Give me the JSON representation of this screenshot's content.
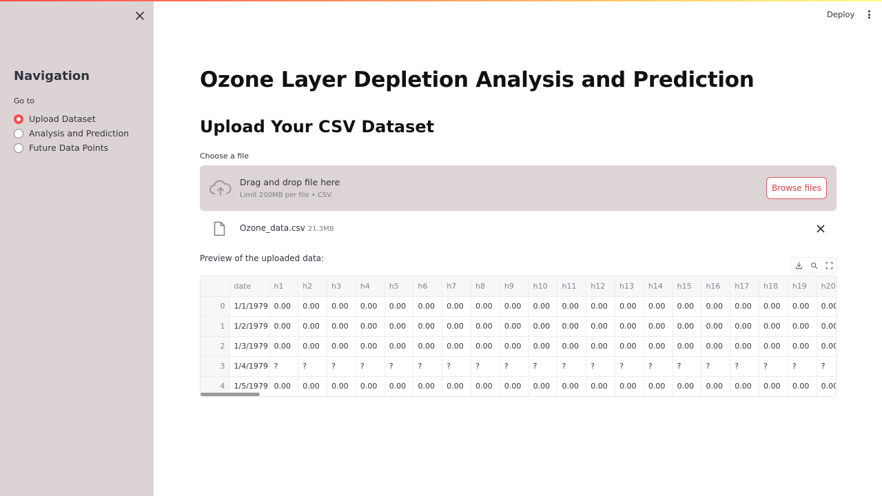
{
  "header": {
    "deploy_label": "Deploy"
  },
  "sidebar": {
    "title": "Navigation",
    "goto_label": "Go to",
    "items": [
      {
        "label": "Upload Dataset",
        "selected": true
      },
      {
        "label": "Analysis and Prediction",
        "selected": false
      },
      {
        "label": "Future Data Points",
        "selected": false
      }
    ]
  },
  "main": {
    "title": "Ozone Layer Depletion Analysis and Prediction",
    "subtitle": "Upload Your CSV Dataset",
    "uploader": {
      "label": "Choose a file",
      "drop_text": "Drag and drop file here",
      "limit_text": "Limit 200MB per file • CSV",
      "browse_label": "Browse files"
    },
    "file": {
      "name": "Ozone_data.csv",
      "size": "21.3MB"
    },
    "preview_label": "Preview of the uploaded data:",
    "table": {
      "columns": [
        "",
        "date",
        "h1",
        "h2",
        "h3",
        "h4",
        "h5",
        "h6",
        "h7",
        "h8",
        "h9",
        "h10",
        "h11",
        "h12",
        "h13",
        "h14",
        "h15",
        "h16",
        "h17",
        "h18",
        "h19",
        "h20"
      ],
      "rows": [
        [
          "0",
          "1/1/1979",
          "0.00",
          "0.00",
          "0.00",
          "0.00",
          "0.00",
          "0.00",
          "0.00",
          "0.00",
          "0.00",
          "0.00",
          "0.00",
          "0.00",
          "0.00",
          "0.00",
          "0.00",
          "0.00",
          "0.00",
          "0.00",
          "0.00",
          "0.00"
        ],
        [
          "1",
          "1/2/1979",
          "0.00",
          "0.00",
          "0.00",
          "0.00",
          "0.00",
          "0.00",
          "0.00",
          "0.00",
          "0.00",
          "0.00",
          "0.00",
          "0.00",
          "0.00",
          "0.00",
          "0.00",
          "0.00",
          "0.00",
          "0.00",
          "0.00",
          "0.00"
        ],
        [
          "2",
          "1/3/1979",
          "0.00",
          "0.00",
          "0.00",
          "0.00",
          "0.00",
          "0.00",
          "0.00",
          "0.00",
          "0.00",
          "0.00",
          "0.00",
          "0.00",
          "0.00",
          "0.00",
          "0.00",
          "0.00",
          "0.00",
          "0.00",
          "0.00",
          "0.00"
        ],
        [
          "3",
          "1/4/1979",
          "?",
          "?",
          "?",
          "?",
          "?",
          "?",
          "?",
          "?",
          "?",
          "?",
          "?",
          "?",
          "?",
          "?",
          "?",
          "?",
          "?",
          "?",
          "?",
          "?"
        ],
        [
          "4",
          "1/5/1979",
          "0.00",
          "0.00",
          "0.00",
          "0.00",
          "0.00",
          "0.00",
          "0.00",
          "0.00",
          "0.00",
          "0.00",
          "0.00",
          "0.00",
          "0.00",
          "0.00",
          "0.00",
          "0.00",
          "0.00",
          "0.00",
          "0.00",
          "0.00"
        ]
      ]
    }
  },
  "icons": {
    "sidebar_close": "close-icon",
    "menu": "kebab-menu-icon",
    "upload": "cloud-upload-icon",
    "file": "file-icon",
    "remove": "close-icon",
    "download": "download-icon",
    "search": "search-icon",
    "fullscreen": "fullscreen-icon"
  },
  "colors": {
    "accent": "#ff4b4b",
    "sidebar_bg": "#dcd4d4",
    "dropzone_bg": "#ddd5d5"
  }
}
